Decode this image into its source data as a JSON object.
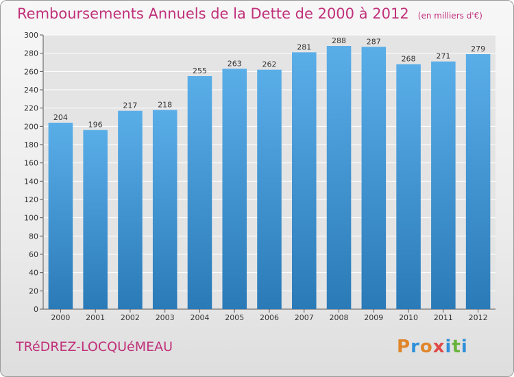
{
  "header": {
    "title": "Remboursements Annuels de la Dette de 2000 à 2012",
    "unit": "(en milliers d'€)"
  },
  "footer": {
    "commune": "TRéDREZ-LOCQUéMEAU",
    "logo": "Proxiti"
  },
  "colors": {
    "title": "#c0307a",
    "bar_top": "#5aaee8",
    "bar_bottom": "#2a7ab8",
    "grid": "#ffffff"
  },
  "chart_data": {
    "type": "bar",
    "title": "Remboursements Annuels de la Dette de 2000 à 2012",
    "categories": [
      "2000",
      "2001",
      "2002",
      "2003",
      "2004",
      "2005",
      "2006",
      "2007",
      "2008",
      "2009",
      "2010",
      "2011",
      "2012"
    ],
    "values": [
      204,
      196,
      217,
      218,
      255,
      263,
      262,
      281,
      288,
      287,
      268,
      271,
      279
    ],
    "data_labels": [
      "204",
      "196",
      "217",
      "218",
      "255",
      "263",
      "262",
      "281",
      "288",
      "287",
      "268",
      "271",
      "279"
    ],
    "ylim": [
      0,
      300
    ],
    "yticks": [
      0,
      20,
      40,
      60,
      80,
      100,
      120,
      140,
      160,
      180,
      200,
      220,
      240,
      260,
      280,
      300
    ],
    "grid": true,
    "xlabel": "",
    "ylabel": ""
  }
}
